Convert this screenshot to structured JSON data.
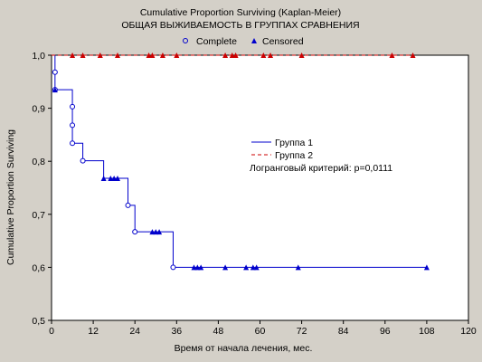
{
  "chart_data": {
    "type": "line",
    "title": "Cumulative Proportion Surviving (Kaplan-Meier)",
    "subtitle": "ОБЩАЯ ВЫЖИВАЕМОСТЬ В ГРУППАХ СРАВНЕНИЯ",
    "xlabel": "Время от начала лечения, мес.",
    "ylabel": "Cumulative Proportion Surviving",
    "xlim": [
      0,
      120
    ],
    "ylim": [
      0.5,
      1.0
    ],
    "x_ticks": [
      0,
      12,
      24,
      36,
      48,
      60,
      72,
      84,
      96,
      108,
      120
    ],
    "y_ticks": [
      0.5,
      0.6,
      0.7,
      0.8,
      0.9,
      1.0
    ],
    "x_tick_labels": [
      "0",
      "12",
      "24",
      "36",
      "48",
      "60",
      "72",
      "84",
      "96",
      "108",
      "120"
    ],
    "y_tick_labels": [
      "0,5",
      "0,6",
      "0,7",
      "0,8",
      "0,9",
      "1,0"
    ],
    "top_legend": [
      {
        "label": "Complete",
        "marker": "open-circle"
      },
      {
        "label": "Censored",
        "marker": "filled-triangle"
      }
    ],
    "series": [
      {
        "name": "Группа 1",
        "color": "#0000cc",
        "style": "solid",
        "steps": [
          [
            0,
            1.0
          ],
          [
            1,
            0.968
          ],
          [
            1,
            0.935
          ],
          [
            6,
            0.903
          ],
          [
            6,
            0.868
          ],
          [
            6,
            0.834
          ],
          [
            9,
            0.801
          ],
          [
            15,
            0.768
          ],
          [
            22,
            0.717
          ],
          [
            24,
            0.667
          ],
          [
            35,
            0.6
          ],
          [
            108,
            0.6
          ]
        ],
        "complete": [
          [
            1,
            0.968
          ],
          [
            1,
            0.935
          ],
          [
            6,
            0.903
          ],
          [
            6,
            0.868
          ],
          [
            6,
            0.834
          ],
          [
            9,
            0.801
          ],
          [
            22,
            0.717
          ],
          [
            24,
            0.667
          ],
          [
            35,
            0.6
          ]
        ],
        "censored": [
          [
            1,
            0.935
          ],
          [
            15,
            0.768
          ],
          [
            17,
            0.768
          ],
          [
            18,
            0.768
          ],
          [
            19,
            0.768
          ],
          [
            29,
            0.667
          ],
          [
            30,
            0.667
          ],
          [
            31,
            0.667
          ],
          [
            41,
            0.6
          ],
          [
            42,
            0.6
          ],
          [
            43,
            0.6
          ],
          [
            50,
            0.6
          ],
          [
            56,
            0.6
          ],
          [
            58,
            0.6
          ],
          [
            59,
            0.6
          ],
          [
            71,
            0.6
          ],
          [
            108,
            0.6
          ]
        ]
      },
      {
        "name": "Группа 2",
        "color": "#cc0000",
        "style": "dashed",
        "steps": [
          [
            0,
            1.0
          ],
          [
            104,
            1.0
          ]
        ],
        "complete": [],
        "censored": [
          [
            6,
            1.0
          ],
          [
            9,
            1.0
          ],
          [
            14,
            1.0
          ],
          [
            19,
            1.0
          ],
          [
            28,
            1.0
          ],
          [
            29,
            1.0
          ],
          [
            32,
            1.0
          ],
          [
            36,
            1.0
          ],
          [
            50,
            1.0
          ],
          [
            52,
            1.0
          ],
          [
            53,
            1.0
          ],
          [
            61,
            1.0
          ],
          [
            63,
            1.0
          ],
          [
            72,
            1.0
          ],
          [
            98,
            1.0
          ],
          [
            104,
            1.0
          ]
        ]
      }
    ],
    "annotation": "Логранговый критерий: p=0,0111",
    "grid": false,
    "legend_position": "center-right"
  }
}
